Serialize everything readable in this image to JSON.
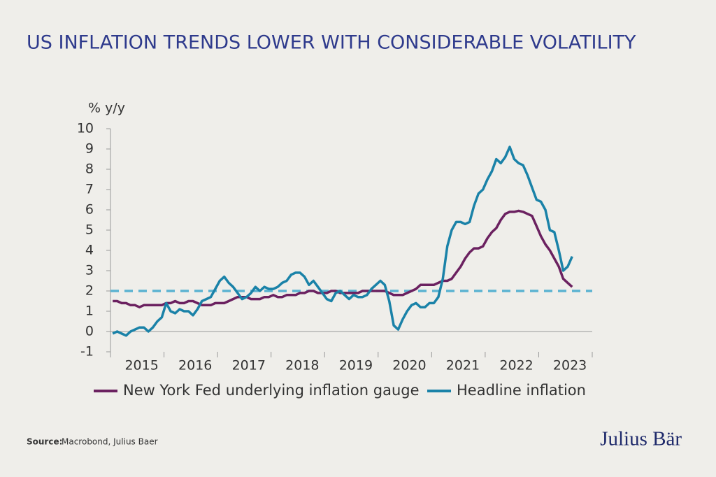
{
  "chart_data": {
    "type": "line",
    "title": "US INFLATION TRENDS LOWER WITH CONSIDERABLE VOLATILITY",
    "y_label": "% y/y",
    "categories": [
      null,
      null,
      null,
      null,
      null,
      null,
      "2015",
      null,
      null,
      null,
      null,
      null,
      null,
      null,
      null,
      null,
      null,
      null,
      "2016",
      null,
      null,
      null,
      null,
      null,
      null,
      null,
      null,
      null,
      null,
      null,
      "2017",
      null,
      null,
      null,
      null,
      null,
      null,
      null,
      null,
      null,
      null,
      null,
      "2018",
      null,
      null,
      null,
      null,
      null,
      null,
      null,
      null,
      null,
      null,
      null,
      "2019",
      null,
      null,
      null,
      null,
      null,
      null,
      null,
      null,
      null,
      null,
      null,
      "2020",
      null,
      null,
      null,
      null,
      null,
      null,
      null,
      null,
      null,
      null,
      null,
      "2021",
      null,
      null,
      null,
      null,
      null,
      null,
      null,
      null,
      null,
      null,
      null,
      "2022",
      null,
      null,
      null,
      null,
      null,
      null,
      null,
      null,
      null,
      null,
      null,
      "2023",
      null,
      null,
      null,
      null,
      null
    ],
    "series": [
      {
        "name": "New York Fed underlying inflation gauge",
        "color": "#6b2160",
        "values": [
          1.5,
          1.5,
          1.4,
          1.4,
          1.3,
          1.3,
          1.2,
          1.3,
          1.3,
          1.3,
          1.3,
          1.3,
          1.4,
          1.4,
          1.5,
          1.4,
          1.4,
          1.5,
          1.5,
          1.4,
          1.3,
          1.3,
          1.3,
          1.4,
          1.4,
          1.4,
          1.5,
          1.6,
          1.7,
          1.7,
          1.7,
          1.6,
          1.6,
          1.6,
          1.7,
          1.7,
          1.8,
          1.7,
          1.7,
          1.8,
          1.8,
          1.8,
          1.9,
          1.9,
          2.0,
          2.0,
          1.9,
          1.9,
          1.9,
          2.0,
          2.0,
          1.9,
          1.9,
          1.9,
          1.9,
          1.9,
          2.0,
          2.0,
          2.0,
          2.0,
          2.0,
          2.0,
          1.9,
          1.8,
          1.8,
          1.8,
          1.9,
          2.0,
          2.1,
          2.3,
          2.3,
          2.3,
          2.3,
          2.4,
          2.5,
          2.5,
          2.6,
          2.9,
          3.2,
          3.6,
          3.9,
          4.1,
          4.1,
          4.2,
          4.6,
          4.9,
          5.1,
          5.5,
          5.8,
          5.9,
          5.9,
          5.95,
          5.9,
          5.8,
          5.7,
          5.2,
          4.7,
          4.3,
          4.0,
          3.6,
          3.2,
          2.6,
          2.4,
          2.2,
          null,
          null,
          null,
          null
        ]
      },
      {
        "name": "Headline inflation",
        "color": "#1a82a8",
        "values": [
          -0.1,
          0.0,
          -0.1,
          -0.2,
          0.0,
          0.1,
          0.2,
          0.2,
          0.0,
          0.2,
          0.5,
          0.7,
          1.4,
          1.0,
          0.9,
          1.1,
          1.0,
          1.0,
          0.8,
          1.1,
          1.5,
          1.6,
          1.7,
          2.1,
          2.5,
          2.7,
          2.4,
          2.2,
          1.9,
          1.6,
          1.7,
          1.9,
          2.2,
          2.0,
          2.2,
          2.1,
          2.1,
          2.2,
          2.4,
          2.5,
          2.8,
          2.9,
          2.9,
          2.7,
          2.3,
          2.5,
          2.2,
          1.9,
          1.6,
          1.5,
          1.9,
          2.0,
          1.8,
          1.6,
          1.8,
          1.7,
          1.7,
          1.8,
          2.1,
          2.3,
          2.5,
          2.3,
          1.5,
          0.3,
          0.1,
          0.6,
          1.0,
          1.3,
          1.4,
          1.2,
          1.2,
          1.4,
          1.4,
          1.7,
          2.6,
          4.2,
          5.0,
          5.4,
          5.4,
          5.3,
          5.4,
          6.2,
          6.8,
          7.0,
          7.5,
          7.9,
          8.5,
          8.3,
          8.6,
          9.1,
          8.5,
          8.3,
          8.2,
          7.7,
          7.1,
          6.5,
          6.4,
          6.0,
          5.0,
          4.9,
          4.0,
          3.0,
          3.2,
          3.7,
          null,
          null,
          null,
          null
        ]
      }
    ],
    "reference_line": {
      "value": 2,
      "color": "#5bb3d1",
      "style": "dashed"
    },
    "ylim": [
      -1,
      10
    ],
    "yticks": [
      -1,
      0,
      1,
      2,
      3,
      4,
      5,
      6,
      7,
      8,
      9,
      10
    ],
    "legend": "bottom"
  },
  "source_label": "Source:",
  "source": "Macrobond, Julius Baer",
  "brand": "Julius Bär"
}
